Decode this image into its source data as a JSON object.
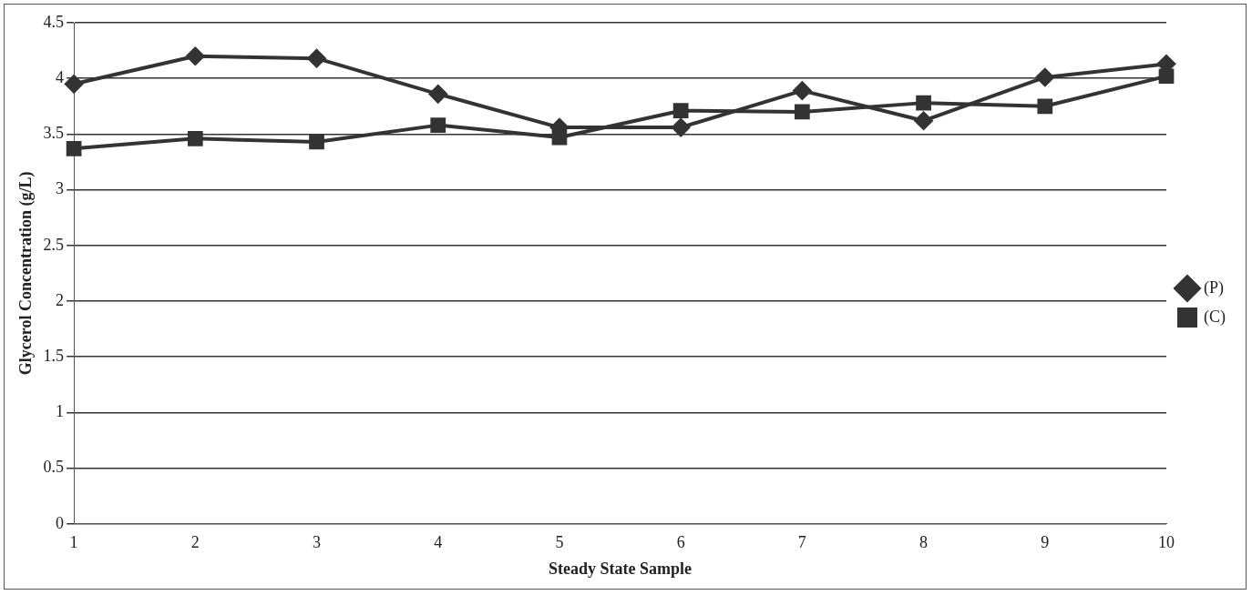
{
  "chart_data": {
    "type": "line",
    "xlabel": "Steady State Sample",
    "ylabel": "Glycerol Concentration (g/L)",
    "categories": [
      "1",
      "2",
      "3",
      "4",
      "5",
      "6",
      "7",
      "8",
      "9",
      "10"
    ],
    "series": [
      {
        "name": "(P)",
        "color": "#333333",
        "marker": "diamond",
        "values": [
          3.95,
          4.2,
          4.18,
          3.86,
          3.56,
          3.56,
          3.89,
          3.62,
          4.01,
          4.13
        ]
      },
      {
        "name": "(C)",
        "color": "#333333",
        "marker": "square",
        "values": [
          3.37,
          3.46,
          3.43,
          3.58,
          3.47,
          3.71,
          3.7,
          3.78,
          3.75,
          4.02
        ]
      }
    ],
    "ylim": [
      0,
      4.5
    ],
    "yticks": [
      0,
      0.5,
      1,
      1.5,
      2,
      2.5,
      3,
      3.5,
      4,
      4.5
    ],
    "grid": "y",
    "legend": "right"
  }
}
